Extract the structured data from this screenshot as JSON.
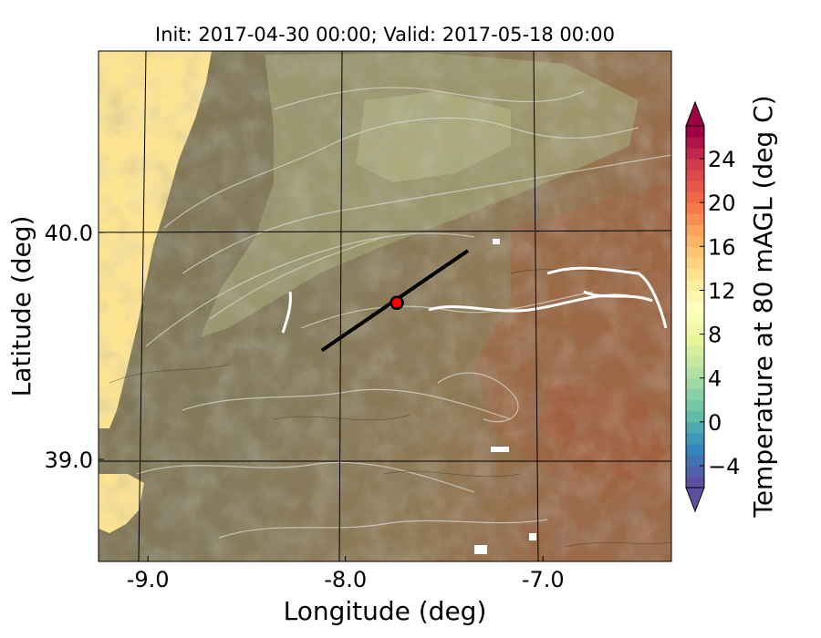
{
  "title": "Init: 2017-04-30 00:00; Valid: 2017-05-18 00:00",
  "chart_data": {
    "type": "heatmap",
    "xlabel": "Longitude (deg)",
    "ylabel": "Latitude (deg)",
    "xlim": [
      -9.25,
      -6.35
    ],
    "ylim": [
      38.55,
      40.8
    ],
    "xticks": [
      {
        "value": -9.0,
        "label": "-9.0"
      },
      {
        "value": -8.0,
        "label": "-8.0"
      },
      {
        "value": -7.0,
        "label": "-7.0"
      }
    ],
    "yticks": [
      {
        "value": 39.0,
        "label": "39.0"
      },
      {
        "value": 40.0,
        "label": "40.0"
      }
    ],
    "grid": true,
    "cross_section_line": {
      "start": {
        "lon": -8.12,
        "lat": 39.48
      },
      "end": {
        "lon": -7.38,
        "lat": 39.92
      }
    },
    "point_marker": {
      "lon": -7.74,
      "lat": 39.69,
      "color": "#ff0000"
    },
    "colorbar": {
      "label": "Temperature at 80 mAGL (deg C)",
      "range": [
        -6,
        27
      ],
      "extend": "both",
      "ticks": [
        {
          "value": -4,
          "label": "−4"
        },
        {
          "value": 0,
          "label": "0"
        },
        {
          "value": 4,
          "label": "4"
        },
        {
          "value": 8,
          "label": "8"
        },
        {
          "value": 12,
          "label": "12"
        },
        {
          "value": 16,
          "label": "16"
        },
        {
          "value": 20,
          "label": "20"
        },
        {
          "value": 24,
          "label": "24"
        }
      ],
      "colors": [
        "#5e4fa2",
        "#3288bd",
        "#66c2a5",
        "#abdda4",
        "#e6f598",
        "#ffffbf",
        "#fee08b",
        "#fdae61",
        "#f46d43",
        "#d53e4f",
        "#9e0142"
      ]
    }
  }
}
